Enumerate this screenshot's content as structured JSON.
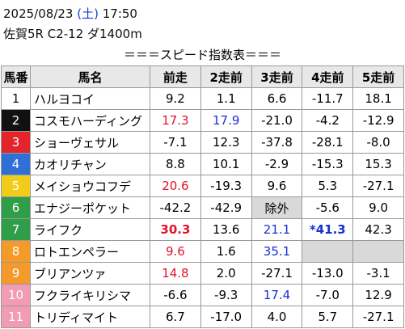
{
  "header": {
    "date": "2025/08/23",
    "weekday": "(土)",
    "time": "17:50",
    "race": "佐賀5R C2-12 ダ1400m",
    "title": "＝＝＝スピード指数表＝＝＝"
  },
  "table": {
    "columns": [
      "馬番",
      "馬名",
      "前走",
      "2走前",
      "3走前",
      "4走前",
      "5走前"
    ],
    "rows": [
      [
        "1",
        "ハルヨコイ",
        "9.2",
        "1.1",
        "6.6",
        "-11.7",
        "18.1"
      ],
      [
        "2",
        "コスモハーディング",
        "17.3",
        "17.9",
        "-21.0",
        "-4.2",
        "-12.9"
      ],
      [
        "3",
        "ショーヴェサル",
        "-7.1",
        "12.3",
        "-37.8",
        "-28.1",
        "-8.0"
      ],
      [
        "4",
        "カオリチャン",
        "8.8",
        "10.1",
        "-2.9",
        "-15.3",
        "15.3"
      ],
      [
        "5",
        "メイショウコフデ",
        "20.6",
        "-19.3",
        "9.6",
        "5.3",
        "-27.1"
      ],
      [
        "6",
        "エナジーポケット",
        "-42.2",
        "-42.9",
        "除外",
        "-5.6",
        "9.0"
      ],
      [
        "7",
        "ライフク",
        "30.3",
        "13.6",
        "21.1",
        "*41.3",
        "42.3"
      ],
      [
        "8",
        "ロトエンペラー",
        "9.6",
        "1.6",
        "35.1",
        null,
        null
      ],
      [
        "9",
        "ブリアンツァ",
        "14.8",
        "2.0",
        "-27.1",
        "-13.0",
        "-3.1"
      ],
      [
        "10",
        "フクライキリシマ",
        "-6.6",
        "-9.3",
        "17.4",
        "-7.0",
        "12.9"
      ],
      [
        "11",
        "トリディマイト",
        "6.7",
        "-17.0",
        "4.0",
        "5.7",
        "-27.1"
      ]
    ]
  }
}
